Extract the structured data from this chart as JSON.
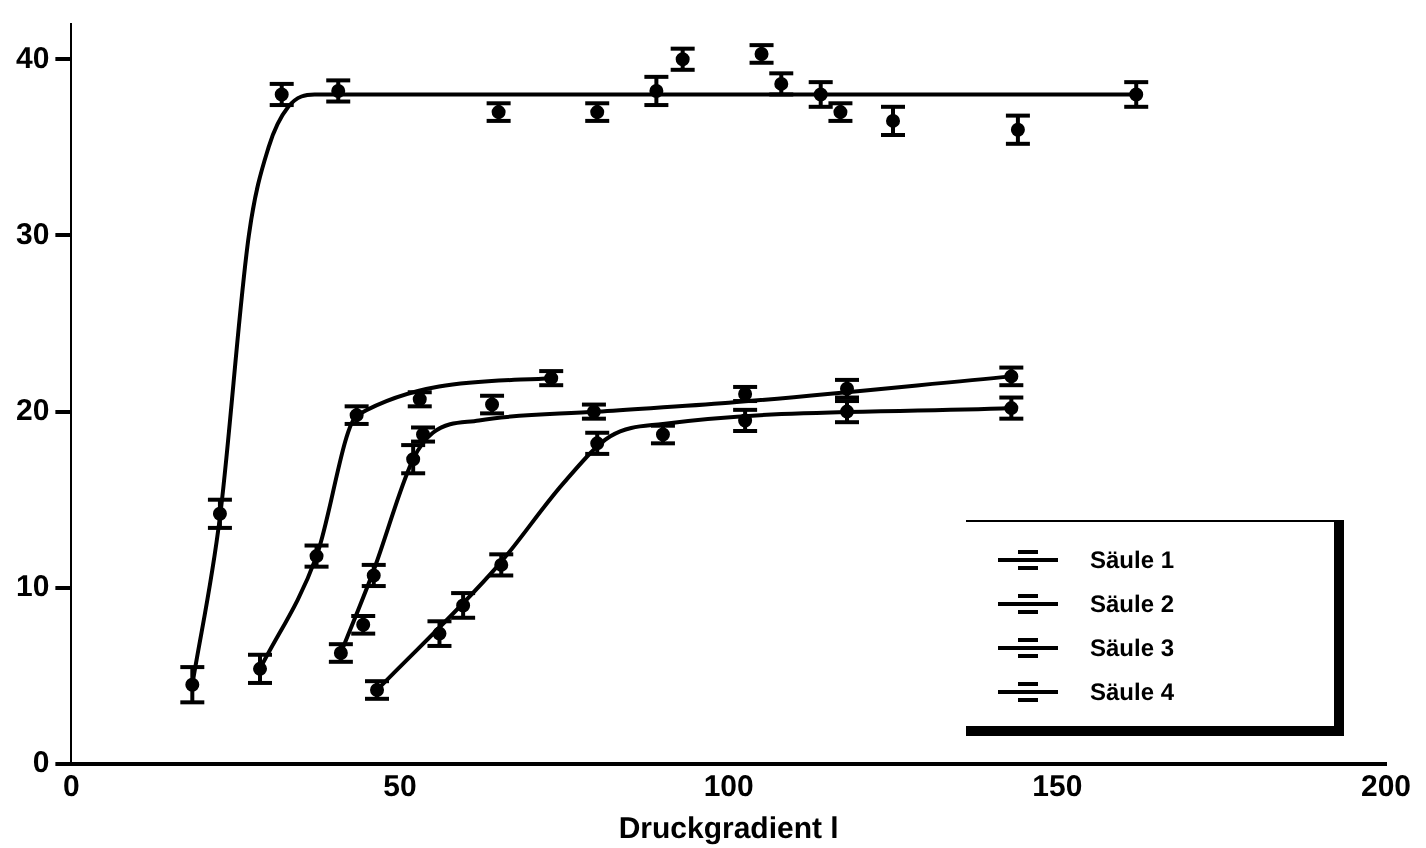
{
  "chart_data": {
    "type": "scatter",
    "xlabel": "Druckgradient l",
    "xlim": [
      0,
      200
    ],
    "xticks": [
      0,
      50,
      100,
      150,
      200
    ],
    "ylim": [
      0,
      42
    ],
    "yticks": [
      0,
      10,
      20,
      30,
      40
    ],
    "grid": false,
    "legend": "bottom right",
    "marker": "circle",
    "series": [
      {
        "name": "Säule 1",
        "color": "#000000",
        "x": [
          18.4,
          22.6,
          32,
          40.6,
          65,
          80,
          89,
          93,
          105,
          108,
          114,
          117,
          125,
          144,
          162
        ],
        "values": [
          4.5,
          14.2,
          38,
          38.2,
          37,
          37,
          38.2,
          40,
          40.3,
          38.6,
          38,
          37,
          36.5,
          36,
          38
        ],
        "errors": [
          1,
          0.8,
          0.6,
          0.6,
          0.5,
          0.5,
          0.8,
          0.6,
          0.5,
          0.6,
          0.7,
          0.5,
          0.8,
          0.8,
          0.7
        ]
      },
      {
        "name": "Säule 2",
        "color": "#000000",
        "x": [
          28.7,
          37.3,
          43.4,
          53,
          64,
          73
        ],
        "values": [
          5.4,
          11.8,
          19.8,
          20.7,
          20.4,
          21.9
        ],
        "errors": [
          0.8,
          0.6,
          0.5,
          0.4,
          0.5,
          0.4
        ]
      },
      {
        "name": "Säule 3",
        "color": "#000000",
        "x": [
          41,
          44.4,
          46,
          52,
          53.5,
          79.5,
          102.5,
          118,
          143
        ],
        "values": [
          6.3,
          7.9,
          10.7,
          17.3,
          18.7,
          20,
          21,
          21.3,
          22
        ],
        "errors": [
          0.5,
          0.5,
          0.6,
          0.8,
          0.4,
          0.4,
          0.4,
          0.5,
          0.5
        ]
      },
      {
        "name": "Säule 4",
        "color": "#000000",
        "x": [
          46.5,
          56,
          59.6,
          65.4,
          80,
          90,
          102.5,
          118,
          143
        ],
        "values": [
          4.2,
          7.4,
          9,
          11.3,
          18.2,
          18.7,
          19.5,
          20,
          20.2
        ],
        "errors": [
          0.5,
          0.7,
          0.7,
          0.6,
          0.6,
          0.5,
          0.6,
          0.6,
          0.6
        ]
      },
      {
        "type": "line",
        "marker": "none",
        "color": "#000000",
        "x": [
          18.4,
          22.6,
          27,
          30,
          33,
          37,
          162
        ],
        "values": [
          4.5,
          14,
          30,
          35,
          37.3,
          38,
          38
        ]
      },
      {
        "type": "line",
        "marker": "none",
        "color": "#000000",
        "x": [
          28.7,
          37.3,
          43.5,
          73
        ],
        "values": [
          5.4,
          11.8,
          19.8,
          21.9
        ]
      },
      {
        "type": "line",
        "marker": "none",
        "color": "#000000",
        "x": [
          41,
          46,
          52,
          55,
          62,
          80,
          100,
          143
        ],
        "values": [
          6.3,
          11,
          17.3,
          18.8,
          19.5,
          20,
          20.5,
          22
        ]
      },
      {
        "type": "line",
        "marker": "none",
        "color": "#000000",
        "x": [
          46.5,
          65,
          75,
          82,
          90,
          143
        ],
        "values": [
          4.2,
          11.3,
          16,
          18.6,
          19.3,
          20.2
        ]
      }
    ]
  }
}
